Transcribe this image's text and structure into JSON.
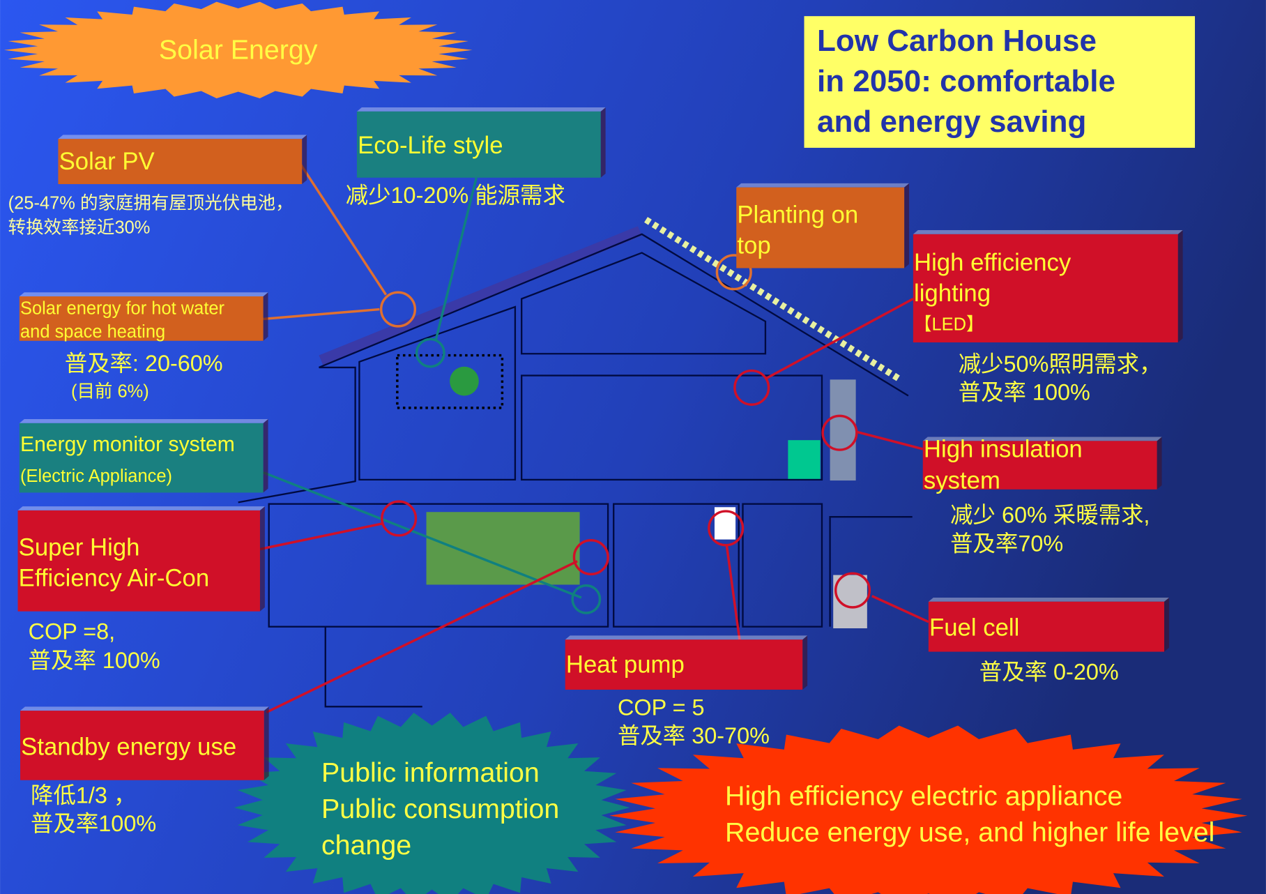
{
  "title": [
    "Low Carbon House",
    "in 2050: comfortable",
    "and energy saving"
  ],
  "bursts": [
    {
      "lines": [
        "Solar Energy"
      ]
    },
    {
      "lines": [
        "Public information",
        "Public consumption",
        "change"
      ]
    },
    {
      "lines": [
        "High efficiency electric appliance",
        "Reduce energy use, and higher life level"
      ]
    }
  ],
  "boxes": [
    {
      "label": [
        "Solar PV"
      ],
      "notes": [
        "(25-47% 的家庭拥有屋顶光伏电池，",
        "转换效率接近30%"
      ]
    },
    {
      "label": [
        "Eco-Life style"
      ],
      "notes": [
        "减少10-20% 能源需求"
      ]
    },
    {
      "label": [
        "Solar energy for hot water",
        "and space heating"
      ],
      "notes": [
        "普及率: 20-60%",
        "(目前 6%)"
      ]
    },
    {
      "label": [
        "Energy monitor system",
        "(Electric Appliance)"
      ],
      "notes": []
    },
    {
      "label": [
        "Super High",
        "Efficiency Air-Con"
      ],
      "notes": [
        "COP =8,",
        "普及率 100%"
      ]
    },
    {
      "label": [
        "Standby energy use"
      ],
      "notes": [
        "降低1/3 ，",
        "普及率100%"
      ]
    },
    {
      "label": [
        "Planting on",
        "top"
      ],
      "notes": []
    },
    {
      "label": [
        "High efficiency",
        "lighting",
        "【LED】"
      ],
      "notes": [
        "减少50%照明需求，",
        "普及率 100%"
      ]
    },
    {
      "label": [
        "High insulation",
        "system"
      ],
      "notes": [
        "减少 60% 采暖需求,",
        "普及率70%"
      ]
    },
    {
      "label": [
        "Fuel cell"
      ],
      "notes": [
        "普及率 0-20%"
      ]
    },
    {
      "label": [
        "Heat pump"
      ],
      "notes": [
        "COP = 5",
        "普及率 30-70%"
      ]
    }
  ]
}
